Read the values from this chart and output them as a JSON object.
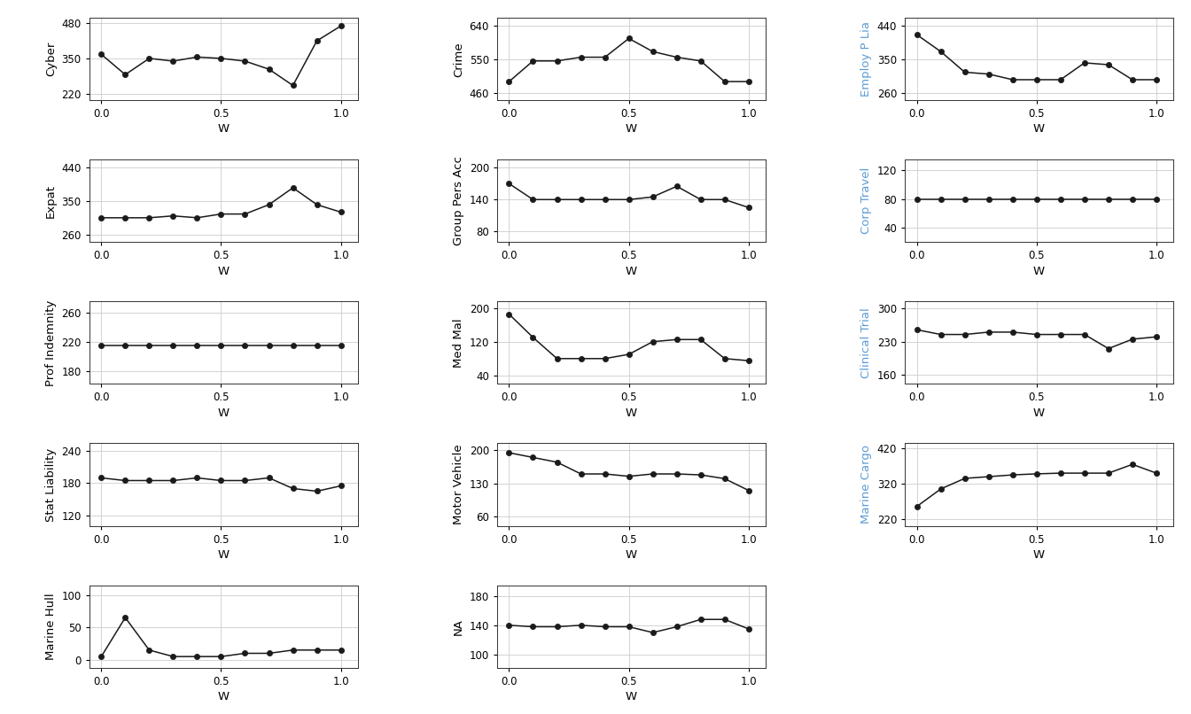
{
  "w_values": [
    0.0,
    0.1,
    0.2,
    0.3,
    0.4,
    0.5,
    0.6,
    0.7,
    0.8,
    0.9,
    1.0
  ],
  "subplots": [
    {
      "title": "Cyber",
      "ylabel_color": "#000000",
      "y": [
        365,
        290,
        350,
        340,
        355,
        350,
        340,
        310,
        250,
        415,
        470
      ],
      "yticks": [
        220,
        350,
        480
      ],
      "ylim": [
        195,
        500
      ]
    },
    {
      "title": "Crime",
      "ylabel_color": "#000000",
      "y": [
        490,
        545,
        545,
        555,
        555,
        605,
        570,
        555,
        545,
        490,
        490
      ],
      "yticks": [
        460,
        550,
        640
      ],
      "ylim": [
        440,
        660
      ]
    },
    {
      "title": "Employ P Lia",
      "ylabel_color": "#5b9bd5",
      "y": [
        415,
        370,
        315,
        310,
        295,
        295,
        295,
        340,
        335,
        295,
        295
      ],
      "yticks": [
        260,
        350,
        440
      ],
      "ylim": [
        240,
        460
      ]
    },
    {
      "title": "Expat",
      "ylabel_color": "#000000",
      "y": [
        305,
        305,
        305,
        310,
        305,
        315,
        315,
        340,
        385,
        340,
        320
      ],
      "yticks": [
        260,
        350,
        440
      ],
      "ylim": [
        240,
        460
      ]
    },
    {
      "title": "Group Pers Acc",
      "ylabel_color": "#000000",
      "y": [
        170,
        140,
        140,
        140,
        140,
        140,
        145,
        165,
        140,
        140,
        125
      ],
      "yticks": [
        80,
        140,
        200
      ],
      "ylim": [
        60,
        215
      ]
    },
    {
      "title": "Corp Travel",
      "ylabel_color": "#5b9bd5",
      "y": [
        80,
        80,
        80,
        80,
        80,
        80,
        80,
        80,
        80,
        80,
        80
      ],
      "yticks": [
        40,
        80,
        120
      ],
      "ylim": [
        20,
        135
      ]
    },
    {
      "title": "Prof Indemnity",
      "ylabel_color": "#000000",
      "y": [
        215,
        215,
        215,
        215,
        215,
        215,
        215,
        215,
        215,
        215,
        215
      ],
      "yticks": [
        180,
        220,
        260
      ],
      "ylim": [
        162,
        275
      ]
    },
    {
      "title": "Med Mal",
      "ylabel_color": "#000000",
      "y": [
        185,
        130,
        80,
        80,
        80,
        90,
        120,
        125,
        125,
        80,
        75
      ],
      "yticks": [
        40,
        120,
        200
      ],
      "ylim": [
        20,
        215
      ]
    },
    {
      "title": "Clinical Trial",
      "ylabel_color": "#5b9bd5",
      "y": [
        255,
        245,
        245,
        250,
        250,
        245,
        245,
        245,
        215,
        235,
        240
      ],
      "yticks": [
        160,
        230,
        300
      ],
      "ylim": [
        140,
        315
      ]
    },
    {
      "title": "Stat Liability",
      "ylabel_color": "#000000",
      "y": [
        190,
        185,
        185,
        185,
        190,
        185,
        185,
        190,
        170,
        165,
        175
      ],
      "yticks": [
        120,
        180,
        240
      ],
      "ylim": [
        100,
        255
      ]
    },
    {
      "title": "Motor Vehicle",
      "ylabel_color": "#000000",
      "y": [
        195,
        185,
        175,
        150,
        150,
        145,
        150,
        150,
        148,
        140,
        115
      ],
      "yticks": [
        60,
        130,
        200
      ],
      "ylim": [
        40,
        215
      ]
    },
    {
      "title": "Marine Cargo",
      "ylabel_color": "#5b9bd5",
      "y": [
        255,
        305,
        335,
        340,
        345,
        348,
        350,
        350,
        350,
        375,
        350
      ],
      "yticks": [
        220,
        320,
        420
      ],
      "ylim": [
        200,
        435
      ]
    },
    {
      "title": "Marine Hull",
      "ylabel_color": "#000000",
      "y": [
        5,
        65,
        15,
        5,
        5,
        5,
        10,
        10,
        15,
        15,
        15
      ],
      "yticks": [
        0,
        50,
        100
      ],
      "ylim": [
        -12,
        115
      ]
    },
    {
      "title": "NA",
      "ylabel_color": "#000000",
      "y": [
        140,
        138,
        138,
        140,
        138,
        138,
        130,
        138,
        148,
        148,
        135
      ],
      "yticks": [
        100,
        140,
        180
      ],
      "ylim": [
        82,
        195
      ]
    }
  ],
  "xlabel": "W",
  "tick_color": "#000000",
  "xlabel_color": "#000000",
  "line_color": "#1a1a1a",
  "dot_color": "#1a1a1a",
  "grid_color": "#cccccc",
  "bg_color": "#ffffff",
  "face_color": "#ffffff",
  "spine_color": "#333333",
  "tick_fontsize": 8.5,
  "label_fontsize": 9.5
}
